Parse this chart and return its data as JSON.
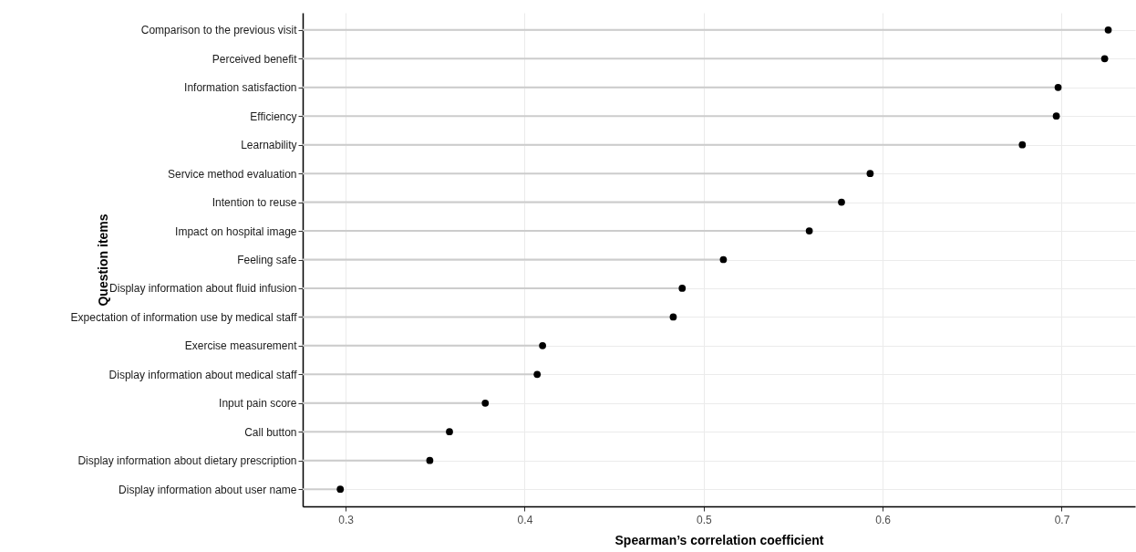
{
  "chart_data": {
    "type": "lollipop",
    "xlabel": "Spearman’s correlation coefficient",
    "ylabel": "Question items",
    "orientation": "horizontal",
    "categories": [
      "Comparison to the previous visit",
      "Perceived benefit",
      "Information satisfaction",
      "Efficiency",
      "Learnability",
      "Service method evaluation",
      "Intention to reuse",
      "Impact on hospital image",
      "Feeling safe",
      "Display information about fluid infusion",
      "Expectation of information use by medical staff",
      "Exercise measurement",
      "Display information about medical staff",
      "Input pain score",
      "Call button",
      "Display information about dietary prescription",
      "Display information about user name"
    ],
    "values": [
      0.726,
      0.724,
      0.698,
      0.697,
      0.678,
      0.593,
      0.577,
      0.559,
      0.511,
      0.488,
      0.483,
      0.41,
      0.407,
      0.378,
      0.358,
      0.347,
      0.297
    ],
    "color": "#000000",
    "xlim": [
      0.276,
      0.741
    ],
    "xticks": [
      0.3,
      0.4,
      0.5,
      0.6,
      0.7
    ],
    "grid": true,
    "marker": "circle"
  }
}
